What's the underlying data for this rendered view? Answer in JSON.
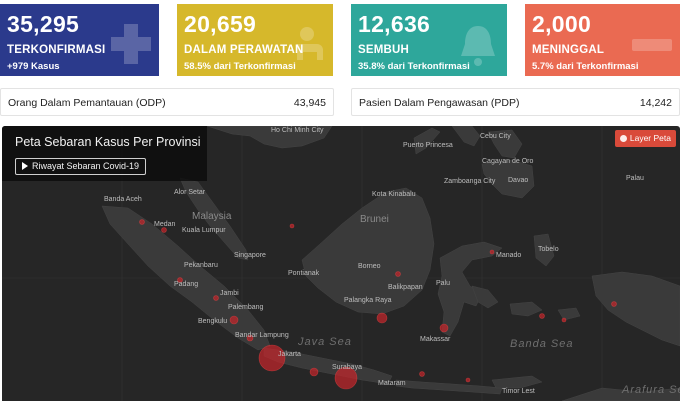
{
  "stats": {
    "confirmed": {
      "value": "35,295",
      "label": "TERKONFIRMASI",
      "sub": "+979 Kasus",
      "color": "#2b3a8c",
      "icon": "plus-icon"
    },
    "treated": {
      "value": "20,659",
      "label": "DALAM PERAWATAN",
      "sub": "58.5% dari Terkonfirmasi",
      "color": "#d6b82b",
      "icon": "hospital-bed-icon"
    },
    "recovered": {
      "value": "12,636",
      "label": "SEMBUH",
      "sub": "35.8% dari Terkonfirmasi",
      "color": "#2ea79b",
      "icon": "bell-icon"
    },
    "deaths": {
      "value": "2,000",
      "label": "MENINGGAL",
      "sub": "5.7% dari Terkonfirmasi",
      "color": "#ea6a52",
      "icon": "minus-icon"
    }
  },
  "odp": {
    "label": "Orang Dalam Pemantauan (ODP)",
    "value": "43,945"
  },
  "pdp": {
    "label": "Pasien Dalam Pengawasan (PDP)",
    "value": "14,242"
  },
  "map": {
    "title": "Peta Sebaran Kasus Per Provinsi",
    "history_button": "Riwayat Sebaran Covid-19",
    "layer_button": "Layer Peta",
    "cities": [
      "Ho Chi Minh City",
      "Cebu City",
      "Puerto Princesa",
      "Cagayan de Oro",
      "Davao",
      "Zamboanga City",
      "Kota Kinabalu",
      "Alor Setar",
      "Banda Aceh",
      "Medan",
      "Kuala Lumpur",
      "Singapore",
      "Pekanbaru",
      "Padang",
      "Jambi",
      "Palembang",
      "Bengkulu",
      "Bandar Lampung",
      "Jakarta",
      "Surabaya",
      "Mataram",
      "Pontianak",
      "Borneo",
      "Palangka Raya",
      "Balikpapan",
      "Palu",
      "Makassar",
      "Manado",
      "Tobelo",
      "Palau",
      "Timor Lest"
    ],
    "countries": [
      "Malaysia",
      "Brunei"
    ],
    "seas": [
      "Java Sea",
      "Banda Sea",
      "Arafura Se"
    ]
  }
}
